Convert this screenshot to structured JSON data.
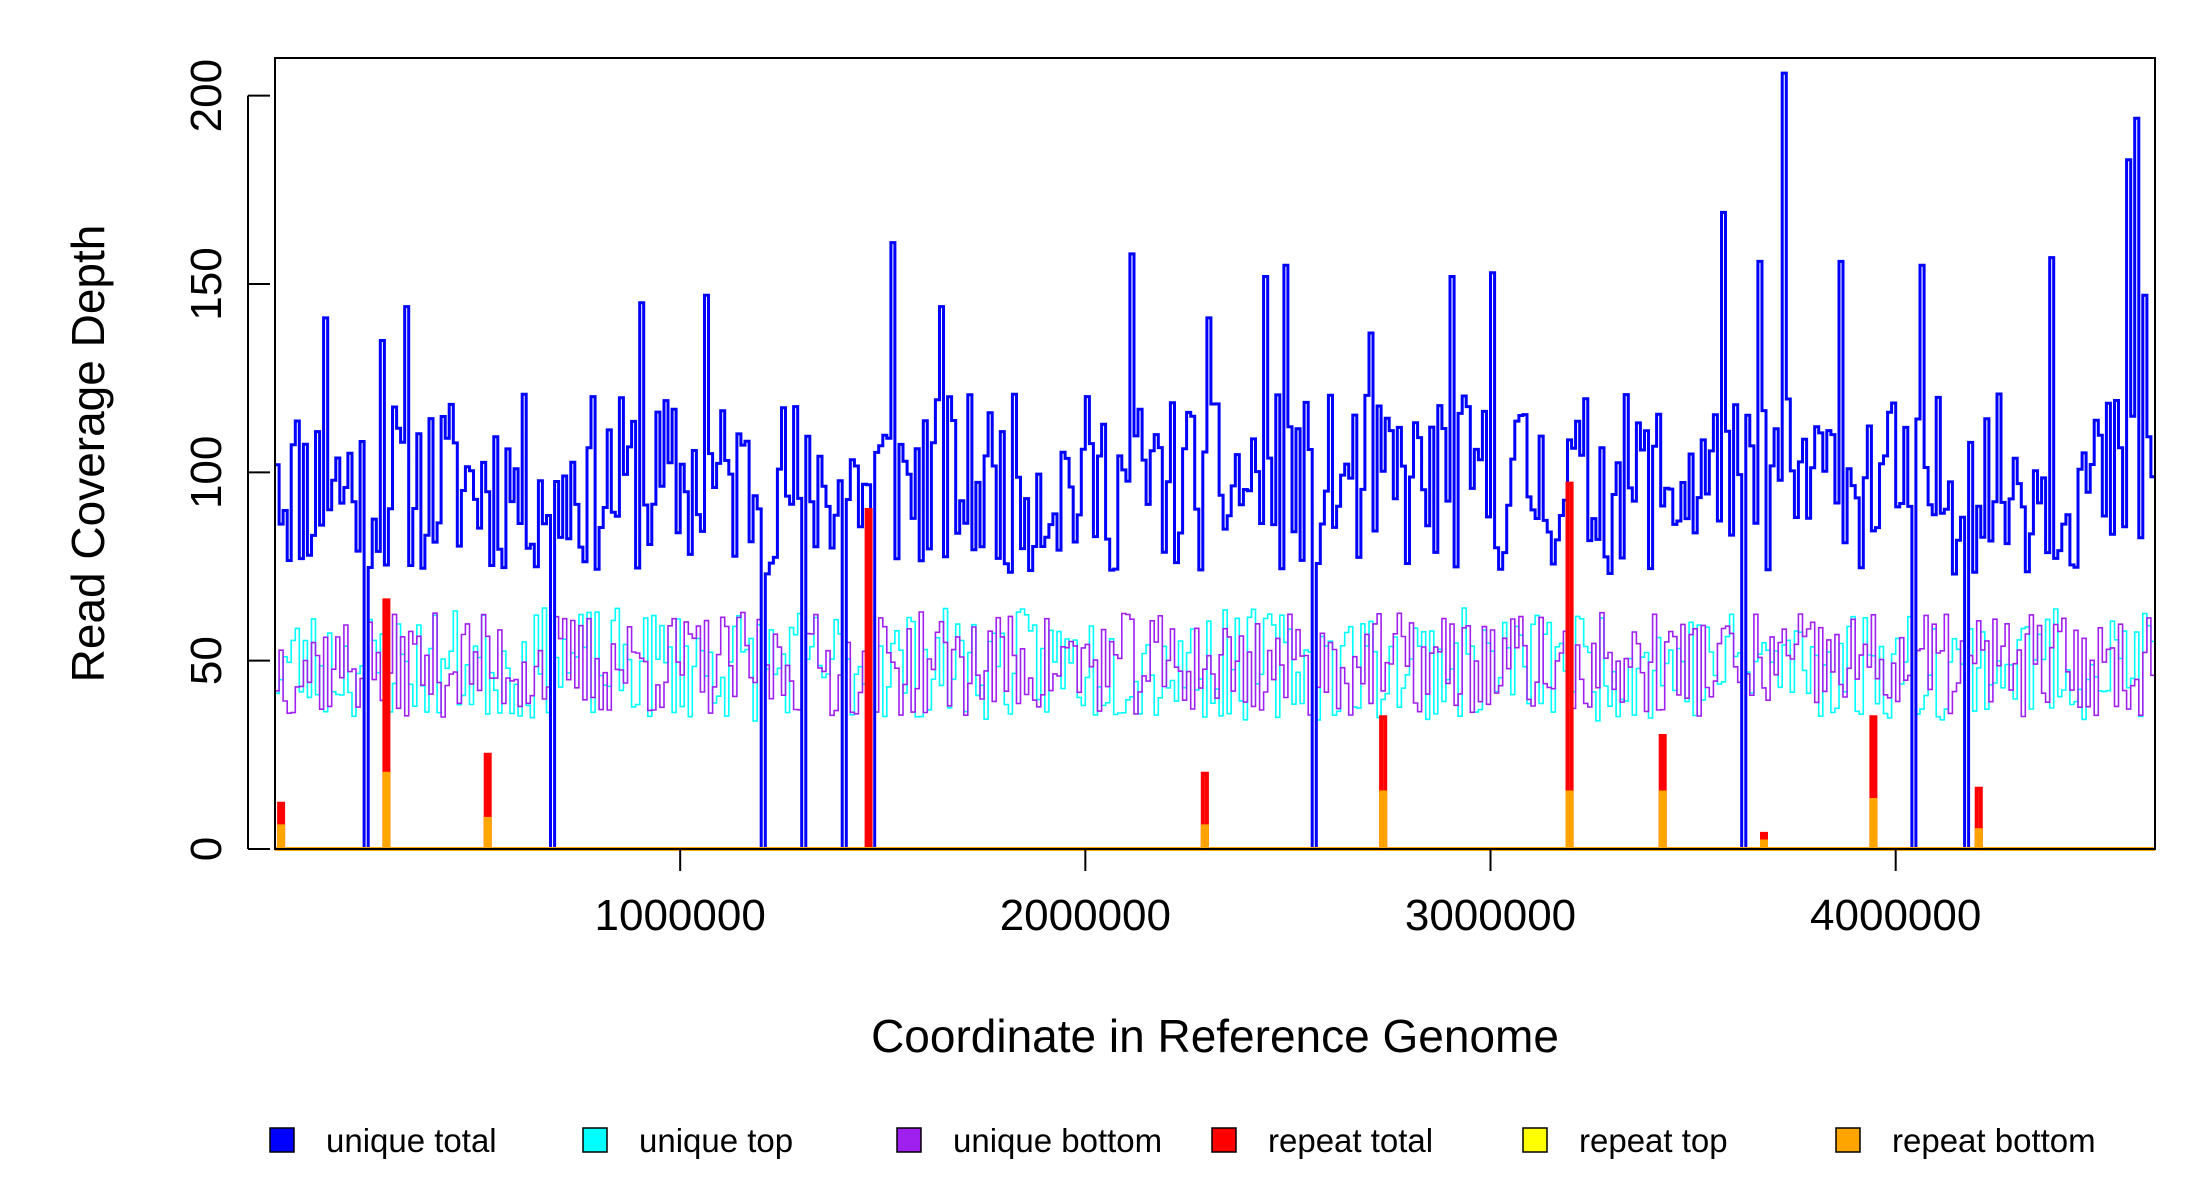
{
  "chart_data": {
    "type": "line",
    "title": "",
    "xlabel": "Coordinate in Reference Genome",
    "ylabel": "Read Coverage Depth",
    "xlim": [
      0,
      4640000
    ],
    "ylim": [
      0,
      210
    ],
    "x_ticks": [
      1000000,
      2000000,
      3000000,
      4000000
    ],
    "x_tick_labels": [
      "1000000",
      "2000000",
      "3000000",
      "4000000"
    ],
    "y_ticks": [
      0,
      50,
      100,
      150,
      200
    ],
    "y_tick_labels": [
      "0",
      "50",
      "100",
      "150",
      "200"
    ],
    "grid": false,
    "legend_position": "bottom",
    "bin_size": 10000,
    "series": [
      {
        "name": "unique total",
        "color": "#0000ff",
        "profile": {
          "mean": 97,
          "jitter": 24,
          "seed": 11,
          "zero_at_dips": true
        },
        "peaks": [
          [
            0,
            102
          ],
          [
            120000,
            141
          ],
          [
            260000,
            135
          ],
          [
            320000,
            144
          ],
          [
            900000,
            145
          ],
          [
            1060000,
            147
          ],
          [
            1520000,
            161
          ],
          [
            1640000,
            144
          ],
          [
            2110000,
            158
          ],
          [
            2300000,
            141
          ],
          [
            2440000,
            152
          ],
          [
            2490000,
            155
          ],
          [
            2700000,
            137
          ],
          [
            2900000,
            152
          ],
          [
            3000000,
            153
          ],
          [
            3570000,
            169
          ],
          [
            3660000,
            156
          ],
          [
            3720000,
            206
          ],
          [
            3860000,
            156
          ],
          [
            4060000,
            155
          ],
          [
            4380000,
            157
          ],
          [
            4570000,
            183
          ],
          [
            4590000,
            194
          ],
          [
            4610000,
            147
          ]
        ]
      },
      {
        "name": "unique top",
        "color": "#00ffff",
        "profile": {
          "mean": 49,
          "jitter": 15,
          "seed": 23,
          "zero_at_dips": true
        },
        "peaks": []
      },
      {
        "name": "unique bottom",
        "color": "#a020f0",
        "profile": {
          "mean": 49,
          "jitter": 14,
          "seed": 37,
          "zero_at_dips": true
        },
        "peaks": []
      },
      {
        "name": "repeat total",
        "color": "#ff0000",
        "baseline": 0,
        "spikes": [
          [
            10000,
            12
          ],
          [
            270000,
            66
          ],
          [
            520000,
            25
          ],
          [
            1460000,
            90
          ],
          [
            2290000,
            20
          ],
          [
            2730000,
            35
          ],
          [
            3190000,
            97
          ],
          [
            3420000,
            30
          ],
          [
            3670000,
            4
          ],
          [
            3940000,
            35
          ],
          [
            4200000,
            16
          ]
        ]
      },
      {
        "name": "repeat top",
        "color": "#ffff00",
        "baseline": 0,
        "spikes": []
      },
      {
        "name": "repeat bottom",
        "color": "#ffa500",
        "baseline": 0,
        "spikes": [
          [
            10000,
            6
          ],
          [
            270000,
            20
          ],
          [
            520000,
            8
          ],
          [
            2290000,
            6
          ],
          [
            2730000,
            15
          ],
          [
            3190000,
            15
          ],
          [
            3420000,
            15
          ],
          [
            3670000,
            2
          ],
          [
            3940000,
            13
          ],
          [
            4200000,
            5
          ]
        ]
      }
    ],
    "dips": [
      220000,
      680000,
      1200000,
      1300000,
      1400000,
      1470000,
      2560000,
      3620000,
      4040000,
      4170000
    ]
  }
}
